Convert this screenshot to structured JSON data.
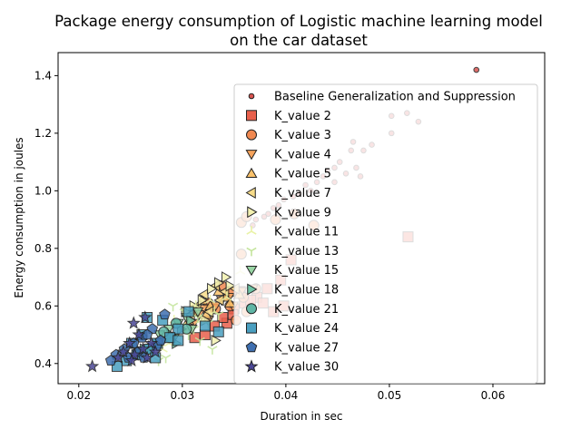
{
  "chart_data": {
    "type": "scatter",
    "title_line1": "Package energy consumption of Logistic machine learning model",
    "title_line2": "on the car dataset",
    "xlabel": "Duration in sec",
    "ylabel": "Energy consumption in joules",
    "xlim": [
      0.018,
      0.065
    ],
    "ylim": [
      0.33,
      1.48
    ],
    "xticks": [
      0.02,
      0.03,
      0.04,
      0.05,
      0.06
    ],
    "xtick_labels": [
      "0.02",
      "0.03",
      "0.04",
      "0.05",
      "0.06"
    ],
    "yticks": [
      0.4,
      0.6,
      0.8,
      1.0,
      1.2,
      1.4
    ],
    "ytick_labels": [
      "0.4",
      "0.6",
      "0.8",
      "1.0",
      "1.2",
      "1.4"
    ],
    "grid": false,
    "legend_position": "right",
    "series": [
      {
        "name": "Baseline Generalization and Suppression",
        "marker": "dot",
        "color": "#d9534f",
        "points": [
          [
            0.0584,
            1.42
          ],
          [
            0.0502,
            1.26
          ],
          [
            0.0517,
            1.27
          ],
          [
            0.0528,
            1.24
          ],
          [
            0.0502,
            1.2
          ],
          [
            0.0483,
            1.16
          ],
          [
            0.0465,
            1.17
          ],
          [
            0.0475,
            1.14
          ],
          [
            0.0463,
            1.14
          ],
          [
            0.0452,
            1.1
          ],
          [
            0.0447,
            1.08
          ],
          [
            0.0468,
            1.08
          ],
          [
            0.044,
            1.07
          ],
          [
            0.0458,
            1.06
          ],
          [
            0.0472,
            1.05
          ],
          [
            0.0436,
            1.05
          ],
          [
            0.0447,
            1.03
          ],
          [
            0.043,
            1.03
          ],
          [
            0.0419,
            1.02
          ],
          [
            0.0424,
            1.0
          ],
          [
            0.0413,
            0.99
          ],
          [
            0.0407,
            0.98
          ],
          [
            0.0398,
            0.97
          ],
          [
            0.0393,
            0.95
          ],
          [
            0.0388,
            0.94
          ],
          [
            0.0383,
            0.92
          ],
          [
            0.0379,
            0.91
          ],
          [
            0.0371,
            0.9
          ],
          [
            0.0368,
            0.88
          ]
        ]
      },
      {
        "name": "K_value 2",
        "marker": "square",
        "color": "#e8604c",
        "points": [
          [
            0.0518,
            0.84
          ],
          [
            0.0405,
            0.76
          ],
          [
            0.0395,
            0.69
          ],
          [
            0.0382,
            0.66
          ],
          [
            0.0372,
            0.63
          ],
          [
            0.036,
            0.61
          ],
          [
            0.035,
            0.59
          ],
          [
            0.0343,
            0.54
          ],
          [
            0.0339,
            0.56
          ],
          [
            0.0356,
            0.65
          ],
          [
            0.0366,
            0.62
          ],
          [
            0.0398,
            0.6
          ],
          [
            0.0388,
            0.58
          ],
          [
            0.0378,
            0.61
          ],
          [
            0.0322,
            0.5
          ],
          [
            0.0312,
            0.49
          ],
          [
            0.0331,
            0.53
          ],
          [
            0.0349,
            0.57
          ]
        ]
      },
      {
        "name": "K_value 3",
        "marker": "circle",
        "color": "#f08850",
        "points": [
          [
            0.0357,
            0.89
          ],
          [
            0.0357,
            0.78
          ],
          [
            0.0427,
            0.88
          ],
          [
            0.0408,
            0.92
          ],
          [
            0.039,
            0.9
          ],
          [
            0.0362,
            0.91
          ],
          [
            0.0371,
            0.66
          ],
          [
            0.0359,
            0.63
          ],
          [
            0.0348,
            0.65
          ],
          [
            0.0338,
            0.67
          ],
          [
            0.0346,
            0.6
          ],
          [
            0.0332,
            0.59
          ],
          [
            0.0325,
            0.61
          ],
          [
            0.0362,
            0.58
          ],
          [
            0.0352,
            0.55
          ]
        ]
      },
      {
        "name": "K_value 4",
        "marker": "triangle-down",
        "color": "#f5a35c",
        "points": [
          [
            0.0357,
            0.65
          ],
          [
            0.0345,
            0.63
          ],
          [
            0.0368,
            0.66
          ],
          [
            0.0332,
            0.6
          ],
          [
            0.0338,
            0.62
          ],
          [
            0.0321,
            0.59
          ],
          [
            0.0316,
            0.57
          ],
          [
            0.0325,
            0.55
          ],
          [
            0.0349,
            0.6
          ],
          [
            0.0311,
            0.54
          ]
        ]
      },
      {
        "name": "K_value 5",
        "marker": "triangle-up",
        "color": "#fac26b",
        "points": [
          [
            0.0319,
            0.62
          ],
          [
            0.0327,
            0.6
          ],
          [
            0.0342,
            0.63
          ],
          [
            0.0335,
            0.65
          ],
          [
            0.0355,
            0.64
          ],
          [
            0.0311,
            0.58
          ],
          [
            0.0323,
            0.57
          ],
          [
            0.0306,
            0.55
          ],
          [
            0.0346,
            0.61
          ]
        ]
      },
      {
        "name": "K_value 7",
        "marker": "triangle-left",
        "color": "#f7dc8a",
        "points": [
          [
            0.0332,
            0.67
          ],
          [
            0.0341,
            0.65
          ],
          [
            0.0351,
            0.66
          ],
          [
            0.0321,
            0.64
          ],
          [
            0.0314,
            0.6
          ],
          [
            0.0326,
            0.58
          ],
          [
            0.0308,
            0.57
          ],
          [
            0.0336,
            0.62
          ]
        ]
      },
      {
        "name": "K_value 9",
        "marker": "triangle-right",
        "color": "#f3f1b0",
        "points": [
          [
            0.0342,
            0.7
          ],
          [
            0.0335,
            0.68
          ],
          [
            0.0346,
            0.67
          ],
          [
            0.0328,
            0.66
          ],
          [
            0.0319,
            0.62
          ],
          [
            0.0311,
            0.6
          ],
          [
            0.0332,
            0.48
          ],
          [
            0.0322,
            0.55
          ],
          [
            0.0303,
            0.58
          ]
        ]
      },
      {
        "name": "K_value 11",
        "marker": "tri-down",
        "color": "#e9f2a6",
        "points": [
          [
            0.0356,
            0.72
          ],
          [
            0.0343,
            0.63
          ],
          [
            0.0331,
            0.58
          ],
          [
            0.0318,
            0.55
          ],
          [
            0.0306,
            0.52
          ],
          [
            0.0296,
            0.5
          ],
          [
            0.0287,
            0.47
          ],
          [
            0.0281,
            0.45
          ],
          [
            0.0292,
            0.55
          ],
          [
            0.0313,
            0.6
          ],
          [
            0.0327,
            0.62
          ]
        ]
      },
      {
        "name": "K_value 13",
        "marker": "tri-up",
        "color": "#c4e59c",
        "points": [
          [
            0.0291,
            0.6
          ],
          [
            0.0302,
            0.58
          ],
          [
            0.0315,
            0.56
          ],
          [
            0.0325,
            0.54
          ],
          [
            0.0329,
            0.45
          ],
          [
            0.0317,
            0.48
          ],
          [
            0.0306,
            0.5
          ],
          [
            0.0284,
            0.42
          ],
          [
            0.0277,
            0.41
          ],
          [
            0.0298,
            0.53
          ],
          [
            0.0311,
            0.52
          ],
          [
            0.0335,
            0.57
          ]
        ]
      },
      {
        "name": "K_value 15",
        "marker": "triangle-down",
        "color": "#98d5a4",
        "points": [
          [
            0.0304,
            0.56
          ],
          [
            0.0296,
            0.54
          ],
          [
            0.0287,
            0.52
          ],
          [
            0.0315,
            0.58
          ],
          [
            0.0278,
            0.5
          ],
          [
            0.0309,
            0.52
          ],
          [
            0.0292,
            0.49
          ]
        ]
      },
      {
        "name": "K_value 18",
        "marker": "triangle-right",
        "color": "#6ec4a5",
        "points": [
          [
            0.0299,
            0.52
          ],
          [
            0.0289,
            0.5
          ],
          [
            0.0282,
            0.48
          ],
          [
            0.0271,
            0.46
          ],
          [
            0.0263,
            0.45
          ],
          [
            0.0308,
            0.55
          ],
          [
            0.0294,
            0.47
          ]
        ]
      },
      {
        "name": "K_value 21",
        "marker": "circle",
        "color": "#5fb5a5",
        "points": [
          [
            0.0304,
            0.52
          ],
          [
            0.0288,
            0.49
          ],
          [
            0.0276,
            0.47
          ],
          [
            0.0282,
            0.51
          ],
          [
            0.0267,
            0.45
          ],
          [
            0.0294,
            0.54
          ],
          [
            0.0259,
            0.44
          ]
        ]
      },
      {
        "name": "K_value 24",
        "marker": "square",
        "color": "#4a9fc0",
        "points": [
          [
            0.0306,
            0.58
          ],
          [
            0.0296,
            0.52
          ],
          [
            0.0288,
            0.49
          ],
          [
            0.0276,
            0.47
          ],
          [
            0.0268,
            0.45
          ],
          [
            0.0256,
            0.43
          ],
          [
            0.0246,
            0.41
          ],
          [
            0.0237,
            0.39
          ],
          [
            0.0266,
            0.56
          ],
          [
            0.0281,
            0.55
          ],
          [
            0.0322,
            0.53
          ],
          [
            0.0335,
            0.51
          ],
          [
            0.0296,
            0.48
          ],
          [
            0.0261,
            0.5
          ],
          [
            0.0251,
            0.47
          ],
          [
            0.0274,
            0.42
          ]
        ]
      },
      {
        "name": "K_value 27",
        "marker": "pentagon",
        "color": "#3f6fb0",
        "points": [
          [
            0.0283,
            0.57
          ],
          [
            0.0271,
            0.52
          ],
          [
            0.0261,
            0.49
          ],
          [
            0.0253,
            0.47
          ],
          [
            0.0244,
            0.45
          ],
          [
            0.0236,
            0.43
          ],
          [
            0.0231,
            0.41
          ],
          [
            0.0266,
            0.5
          ],
          [
            0.0275,
            0.46
          ],
          [
            0.0257,
            0.44
          ],
          [
            0.0248,
            0.42
          ],
          [
            0.0263,
            0.42
          ],
          [
            0.0279,
            0.48
          ]
        ]
      },
      {
        "name": "K_value 30",
        "marker": "star",
        "color": "#4b4797",
        "points": [
          [
            0.0213,
            0.39
          ],
          [
            0.0253,
            0.54
          ],
          [
            0.0264,
            0.56
          ],
          [
            0.0258,
            0.5
          ],
          [
            0.0249,
            0.47
          ],
          [
            0.0243,
            0.44
          ],
          [
            0.0238,
            0.42
          ],
          [
            0.0254,
            0.43
          ],
          [
            0.0262,
            0.45
          ],
          [
            0.027,
            0.47
          ],
          [
            0.0251,
            0.41
          ],
          [
            0.0266,
            0.42
          ],
          [
            0.0274,
            0.44
          ]
        ]
      }
    ]
  }
}
